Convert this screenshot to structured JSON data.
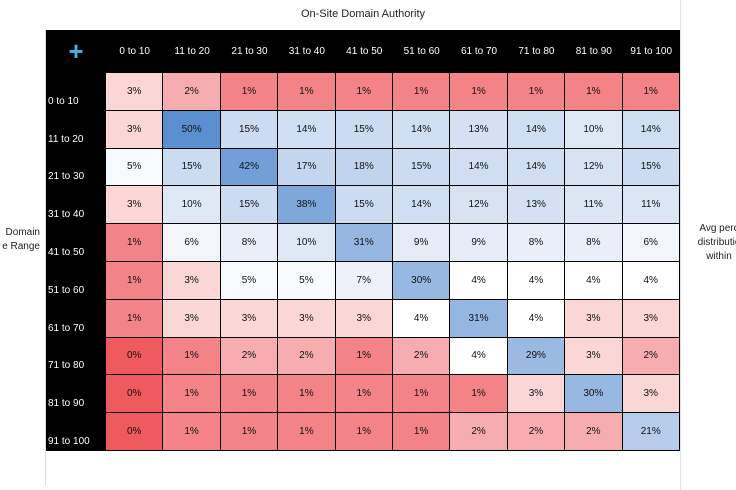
{
  "header": {
    "title": "On-Site Domain Authority"
  },
  "left_label": [
    "Domain",
    "e Range"
  ],
  "right_label": [
    "Avg perc",
    "distributio",
    "within "
  ],
  "corner_icon": "plus-icon",
  "colors": {
    "high": "#5b8fd0",
    "mid": "#ffffff",
    "low": "#ef5a5e",
    "corner_icon": "#3fb5e5"
  },
  "chart_data": {
    "type": "heatmap",
    "title": "On-Site Domain Authority",
    "columns": [
      "0 to 10",
      "11 to 20",
      "21 to 30",
      "31 to 40",
      "41 to 50",
      "51 to 60",
      "61 to 70",
      "71 to 80",
      "81 to 90",
      "91 to 100"
    ],
    "rows": [
      "0 to 10",
      "11 to 20",
      "21 to 30",
      "31 to 40",
      "41 to 50",
      "51 to 60",
      "61 to 70",
      "71 to 80",
      "81 to 90",
      "91 to 100"
    ],
    "values": [
      [
        "3%",
        "2%",
        "1%",
        "1%",
        "1%",
        "1%",
        "1%",
        "1%",
        "1%",
        "1%"
      ],
      [
        "3%",
        "50%",
        "15%",
        "14%",
        "15%",
        "14%",
        "13%",
        "14%",
        "10%",
        "14%"
      ],
      [
        "5%",
        "15%",
        "42%",
        "17%",
        "18%",
        "15%",
        "14%",
        "14%",
        "12%",
        "15%"
      ],
      [
        "3%",
        "10%",
        "15%",
        "38%",
        "15%",
        "14%",
        "12%",
        "13%",
        "11%",
        "11%"
      ],
      [
        "1%",
        "6%",
        "8%",
        "10%",
        "31%",
        "9%",
        "9%",
        "8%",
        "8%",
        "6%"
      ],
      [
        "1%",
        "3%",
        "5%",
        "5%",
        "7%",
        "30%",
        "4%",
        "4%",
        "4%",
        "4%"
      ],
      [
        "1%",
        "3%",
        "3%",
        "3%",
        "3%",
        "4%",
        "31%",
        "4%",
        "3%",
        "3%"
      ],
      [
        "0%",
        "1%",
        "2%",
        "2%",
        "1%",
        "2%",
        "4%",
        "29%",
        "3%",
        "2%"
      ],
      [
        "0%",
        "1%",
        "1%",
        "1%",
        "1%",
        "1%",
        "1%",
        "3%",
        "30%",
        "3%"
      ],
      [
        "0%",
        "1%",
        "1%",
        "1%",
        "1%",
        "1%",
        "2%",
        "2%",
        "2%",
        "21%"
      ]
    ]
  }
}
